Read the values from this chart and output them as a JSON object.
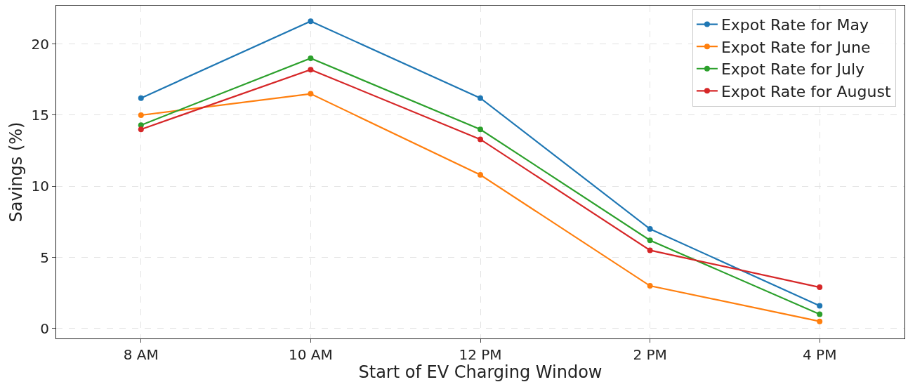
{
  "chart_data": {
    "type": "line",
    "xlabel": "Start of EV Charging Window",
    "ylabel": "Savings (%)",
    "categories": [
      "8 AM",
      "10 AM",
      "12 PM",
      "2 PM",
      "4 PM"
    ],
    "series": [
      {
        "name": "Expot Rate for May",
        "color": "#1f77b4",
        "values": [
          16.2,
          21.6,
          16.2,
          7.0,
          1.6
        ]
      },
      {
        "name": "Expot Rate for June",
        "color": "#ff7f0e",
        "values": [
          15.0,
          16.5,
          10.8,
          3.0,
          0.5
        ]
      },
      {
        "name": "Expot Rate for July",
        "color": "#2ca02c",
        "values": [
          14.3,
          19.0,
          14.0,
          6.2,
          1.0
        ]
      },
      {
        "name": "Expot Rate for August",
        "color": "#d62728",
        "values": [
          14.0,
          18.2,
          13.3,
          5.5,
          2.9
        ]
      }
    ],
    "ylim": [
      -0.7,
      22.7
    ],
    "yticks": [
      0,
      5,
      10,
      15,
      20
    ],
    "grid": true,
    "legend": "top right",
    "marker": "circle",
    "line_style": "solid"
  }
}
